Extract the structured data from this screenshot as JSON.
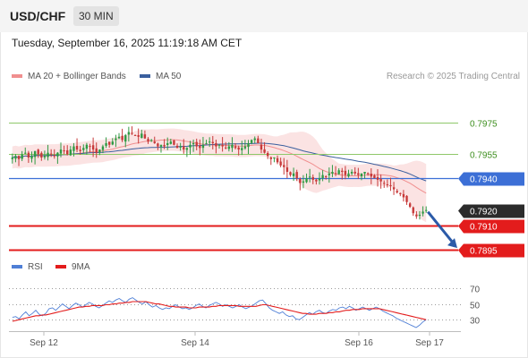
{
  "header": {
    "pair": "USD/CHF",
    "timeframe": "30 MIN"
  },
  "timestamp": "Tuesday, September 16, 2025 11:19:18 AM CET",
  "legend": {
    "ma20_label": "MA 20 + Bollinger Bands",
    "ma50_label": "MA 50"
  },
  "credit": "Research © 2025 Trading Central",
  "rsi_legend": {
    "rsi_label": "RSI",
    "ma_label": "9MA"
  },
  "colors": {
    "bollinger": "#f08f8f",
    "ma50": "#3a5f9e",
    "pivot_blue": "#3c6fd6",
    "support_red": "#e31c1c",
    "resistance_green": "#8fc86a",
    "rsi": "#4f7fd6",
    "rsi_ma": "#e31c1c",
    "up": "#2f9a44",
    "down": "#c73a3a",
    "arrow": "#2b5aa8"
  },
  "chart_data": [
    {
      "type": "candlestick",
      "title": "USD/CHF",
      "xlabel": "",
      "ylabel": "",
      "x_ticks": [
        "Sep 12",
        "Sep 14",
        "Sep 16",
        "Sep 17"
      ],
      "ylim": [
        0.789,
        0.7998
      ],
      "grid": false,
      "last_price": 0.792,
      "levels": [
        {
          "value": 0.7975,
          "label": "0.7975",
          "kind": "resistance"
        },
        {
          "value": 0.7955,
          "label": "0.7955",
          "kind": "resistance"
        },
        {
          "value": 0.794,
          "label": "0.7940",
          "kind": "pivot"
        },
        {
          "value": 0.792,
          "label": "0.7920",
          "kind": "last"
        },
        {
          "value": 0.791,
          "label": "0.7910",
          "kind": "support"
        },
        {
          "value": 0.7895,
          "label": "0.7895",
          "kind": "support"
        }
      ],
      "series": [
        {
          "name": "MA 20 + Bollinger Bands"
        },
        {
          "name": "MA 50"
        }
      ],
      "close": [
        0.7953,
        0.7954,
        0.7952,
        0.7955,
        0.7956,
        0.7953,
        0.7954,
        0.7957,
        0.7955,
        0.7953,
        0.7954,
        0.7956,
        0.7955,
        0.7954,
        0.7956,
        0.7958,
        0.7957,
        0.7955,
        0.7958,
        0.796,
        0.7958,
        0.7957,
        0.7959,
        0.7961,
        0.796,
        0.7958,
        0.7956,
        0.7958,
        0.796,
        0.7962,
        0.7961,
        0.7963,
        0.7965,
        0.7966,
        0.7964,
        0.7967,
        0.7969,
        0.7968,
        0.7967,
        0.7966,
        0.7968,
        0.7965,
        0.7963,
        0.7964,
        0.7962,
        0.796,
        0.7961,
        0.796,
        0.7962,
        0.7963,
        0.7961,
        0.7959,
        0.796,
        0.7958,
        0.7959,
        0.7961,
        0.7962,
        0.796,
        0.7959,
        0.7961,
        0.7962,
        0.7963,
        0.7962,
        0.796,
        0.7961,
        0.796,
        0.7959,
        0.796,
        0.7961,
        0.7959,
        0.7958,
        0.7959,
        0.796,
        0.7962,
        0.7964,
        0.7965,
        0.7962,
        0.7958,
        0.7956,
        0.7954,
        0.7952,
        0.7953,
        0.795,
        0.7948,
        0.7947,
        0.7944,
        0.7942,
        0.7943,
        0.794,
        0.7937,
        0.7938,
        0.794,
        0.7941,
        0.7939,
        0.7938,
        0.794,
        0.7942,
        0.7941,
        0.7943,
        0.7944,
        0.7943,
        0.7945,
        0.7944,
        0.7942,
        0.7943,
        0.7944,
        0.7943,
        0.7942,
        0.7943,
        0.7944,
        0.7943,
        0.7941,
        0.794,
        0.7939,
        0.7938,
        0.7937,
        0.7936,
        0.7935,
        0.7933,
        0.7931,
        0.793,
        0.7928,
        0.7925,
        0.7922,
        0.7918,
        0.7916,
        0.7917,
        0.7919,
        0.792
      ]
    },
    {
      "type": "line",
      "title": "RSI",
      "x_ticks": [
        "Sep 12",
        "Sep 14",
        "Sep 16",
        "Sep 17"
      ],
      "y_ticks": [
        30,
        50,
        70
      ],
      "ylim": [
        20,
        78
      ],
      "series": [
        {
          "name": "RSI",
          "values": [
            33,
            34,
            31,
            36,
            40,
            35,
            38,
            42,
            37,
            35,
            38,
            44,
            45,
            42,
            46,
            50,
            47,
            44,
            48,
            51,
            49,
            46,
            49,
            52,
            50,
            47,
            45,
            48,
            51,
            54,
            52,
            55,
            57,
            54,
            52,
            56,
            58,
            55,
            52,
            50,
            53,
            49,
            46,
            48,
            45,
            43,
            45,
            44,
            47,
            49,
            46,
            44,
            45,
            43,
            45,
            48,
            50,
            47,
            45,
            48,
            50,
            52,
            50,
            47,
            49,
            47,
            45,
            47,
            49,
            46,
            44,
            46,
            48,
            51,
            54,
            55,
            50,
            45,
            42,
            40,
            38,
            40,
            36,
            34,
            35,
            31,
            30,
            33,
            36,
            39,
            37,
            40,
            42,
            39,
            38,
            41,
            43,
            42,
            45,
            46,
            44,
            47,
            45,
            42,
            44,
            46,
            44,
            42,
            44,
            46,
            44,
            41,
            39,
            37,
            35,
            32,
            30,
            28,
            26,
            24,
            22,
            20,
            23,
            27,
            30
          ]
        },
        {
          "name": "9MA",
          "values": [
            28,
            29,
            30,
            31,
            32,
            33,
            34,
            35,
            35,
            36,
            36,
            37,
            38,
            39,
            40,
            41,
            42,
            43,
            44,
            45,
            46,
            46,
            47,
            47,
            48,
            48,
            48,
            48,
            49,
            49,
            50,
            50,
            51,
            51,
            52,
            52,
            53,
            53,
            53,
            53,
            53,
            52,
            51,
            50,
            50,
            49,
            48,
            47,
            47,
            46,
            46,
            46,
            46,
            45,
            45,
            45,
            46,
            46,
            46,
            46,
            47,
            47,
            48,
            48,
            48,
            48,
            48,
            48,
            47,
            47,
            47,
            47,
            47,
            47,
            48,
            49,
            49,
            48,
            47,
            46,
            45,
            44,
            43,
            42,
            41,
            40,
            39,
            38,
            38,
            37,
            37,
            37,
            38,
            38,
            38,
            39,
            39,
            40,
            40,
            41,
            42,
            42,
            43,
            43,
            43,
            44,
            44,
            44,
            44,
            44,
            44,
            43,
            42,
            41,
            40,
            39,
            38,
            37,
            36,
            35,
            34,
            33,
            32,
            31,
            30
          ]
        }
      ]
    }
  ]
}
